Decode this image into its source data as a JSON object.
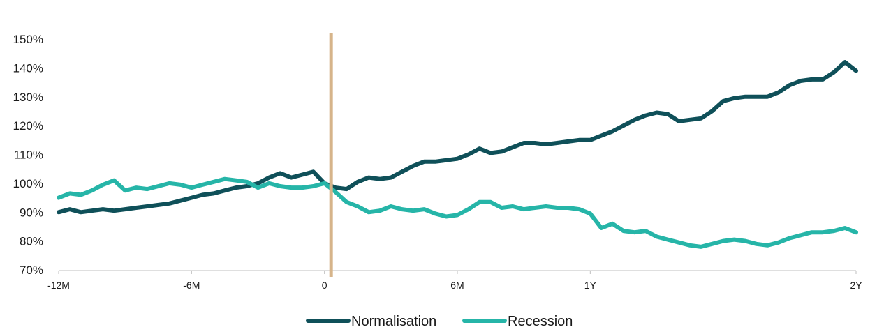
{
  "chart_data": {
    "type": "line",
    "title": "",
    "xlabel": "",
    "ylabel": "",
    "y_ticks": [
      {
        "value": 0.7,
        "label": "70%"
      },
      {
        "value": 0.8,
        "label": "80%"
      },
      {
        "value": 0.9,
        "label": "90%"
      },
      {
        "value": 1.0,
        "label": "100%"
      },
      {
        "value": 1.1,
        "label": "110%"
      },
      {
        "value": 1.2,
        "label": "120%"
      },
      {
        "value": 1.3,
        "label": "130%"
      },
      {
        "value": 1.4,
        "label": "140%"
      },
      {
        "value": 1.5,
        "label": "150%"
      }
    ],
    "x_ticks": [
      {
        "value": -12,
        "label": "-12M"
      },
      {
        "value": -6,
        "label": "-6M"
      },
      {
        "value": 0,
        "label": "0"
      },
      {
        "value": 6,
        "label": "6M"
      },
      {
        "value": 12,
        "label": "1Y"
      },
      {
        "value": 24,
        "label": "2Y"
      }
    ],
    "xlim": [
      -12,
      24
    ],
    "ylim": [
      0.7,
      1.5
    ],
    "x_unit": "months",
    "event_marker": {
      "x": 0.3,
      "color": "#d6b48a"
    },
    "grid": false,
    "legend": "bottom-center",
    "series": [
      {
        "name": "Normalisation",
        "color": "#0f5059",
        "points": [
          [
            -12,
            0.9
          ],
          [
            -11.5,
            0.91
          ],
          [
            -11,
            0.9
          ],
          [
            -10.5,
            0.905
          ],
          [
            -10,
            0.91
          ],
          [
            -9.5,
            0.905
          ],
          [
            -9,
            0.91
          ],
          [
            -8.5,
            0.915
          ],
          [
            -8,
            0.92
          ],
          [
            -7.5,
            0.925
          ],
          [
            -7,
            0.93
          ],
          [
            -6.5,
            0.94
          ],
          [
            -6,
            0.95
          ],
          [
            -5.5,
            0.96
          ],
          [
            -5,
            0.965
          ],
          [
            -4.5,
            0.975
          ],
          [
            -4,
            0.985
          ],
          [
            -3.5,
            0.99
          ],
          [
            -3,
            1.0
          ],
          [
            -2.5,
            1.02
          ],
          [
            -2,
            1.035
          ],
          [
            -1.5,
            1.02
          ],
          [
            -1,
            1.03
          ],
          [
            -0.5,
            1.04
          ],
          [
            0,
            1.0
          ],
          [
            0.5,
            0.985
          ],
          [
            1,
            0.98
          ],
          [
            1.5,
            1.005
          ],
          [
            2,
            1.02
          ],
          [
            2.5,
            1.015
          ],
          [
            3,
            1.02
          ],
          [
            3.5,
            1.04
          ],
          [
            4,
            1.06
          ],
          [
            4.5,
            1.075
          ],
          [
            5,
            1.075
          ],
          [
            5.5,
            1.08
          ],
          [
            6,
            1.085
          ],
          [
            6.5,
            1.1
          ],
          [
            7,
            1.12
          ],
          [
            7.5,
            1.105
          ],
          [
            8,
            1.11
          ],
          [
            8.5,
            1.125
          ],
          [
            9,
            1.14
          ],
          [
            9.5,
            1.14
          ],
          [
            10,
            1.135
          ],
          [
            10.5,
            1.14
          ],
          [
            11,
            1.145
          ],
          [
            11.5,
            1.15
          ],
          [
            12,
            1.15
          ],
          [
            12.5,
            1.165
          ],
          [
            13,
            1.18
          ],
          [
            13.5,
            1.2
          ],
          [
            14,
            1.22
          ],
          [
            14.5,
            1.235
          ],
          [
            15,
            1.245
          ],
          [
            15.5,
            1.24
          ],
          [
            16,
            1.215
          ],
          [
            16.5,
            1.22
          ],
          [
            17,
            1.225
          ],
          [
            17.5,
            1.25
          ],
          [
            18,
            1.285
          ],
          [
            18.5,
            1.295
          ],
          [
            19,
            1.3
          ],
          [
            19.5,
            1.3
          ],
          [
            20,
            1.3
          ],
          [
            20.5,
            1.315
          ],
          [
            21,
            1.34
          ],
          [
            21.5,
            1.355
          ],
          [
            22,
            1.36
          ],
          [
            22.5,
            1.36
          ],
          [
            23,
            1.385
          ],
          [
            23.5,
            1.42
          ],
          [
            24,
            1.39
          ]
        ]
      },
      {
        "name": "Recession",
        "color": "#26b5a8",
        "points": [
          [
            -12,
            0.95
          ],
          [
            -11.5,
            0.965
          ],
          [
            -11,
            0.96
          ],
          [
            -10.5,
            0.975
          ],
          [
            -10,
            0.995
          ],
          [
            -9.5,
            1.01
          ],
          [
            -9,
            0.975
          ],
          [
            -8.5,
            0.985
          ],
          [
            -8,
            0.98
          ],
          [
            -7.5,
            0.99
          ],
          [
            -7,
            1.0
          ],
          [
            -6.5,
            0.995
          ],
          [
            -6,
            0.985
          ],
          [
            -5.5,
            0.995
          ],
          [
            -5,
            1.005
          ],
          [
            -4.5,
            1.015
          ],
          [
            -4,
            1.01
          ],
          [
            -3.5,
            1.005
          ],
          [
            -3,
            0.985
          ],
          [
            -2.5,
            1.0
          ],
          [
            -2,
            0.99
          ],
          [
            -1.5,
            0.985
          ],
          [
            -1,
            0.985
          ],
          [
            -0.5,
            0.99
          ],
          [
            0,
            1.0
          ],
          [
            0.5,
            0.97
          ],
          [
            1,
            0.935
          ],
          [
            1.5,
            0.92
          ],
          [
            2,
            0.9
          ],
          [
            2.5,
            0.905
          ],
          [
            3,
            0.92
          ],
          [
            3.5,
            0.91
          ],
          [
            4,
            0.905
          ],
          [
            4.5,
            0.91
          ],
          [
            5,
            0.895
          ],
          [
            5.5,
            0.885
          ],
          [
            6,
            0.89
          ],
          [
            6.5,
            0.91
          ],
          [
            7,
            0.935
          ],
          [
            7.5,
            0.935
          ],
          [
            8,
            0.915
          ],
          [
            8.5,
            0.92
          ],
          [
            9,
            0.91
          ],
          [
            9.5,
            0.915
          ],
          [
            10,
            0.92
          ],
          [
            10.5,
            0.915
          ],
          [
            11,
            0.915
          ],
          [
            11.5,
            0.91
          ],
          [
            12,
            0.895
          ],
          [
            12.5,
            0.845
          ],
          [
            13,
            0.86
          ],
          [
            13.5,
            0.835
          ],
          [
            14,
            0.83
          ],
          [
            14.5,
            0.835
          ],
          [
            15,
            0.815
          ],
          [
            15.5,
            0.805
          ],
          [
            16,
            0.795
          ],
          [
            16.5,
            0.785
          ],
          [
            17,
            0.78
          ],
          [
            17.5,
            0.79
          ],
          [
            18,
            0.8
          ],
          [
            18.5,
            0.805
          ],
          [
            19,
            0.8
          ],
          [
            19.5,
            0.79
          ],
          [
            20,
            0.785
          ],
          [
            20.5,
            0.795
          ],
          [
            21,
            0.81
          ],
          [
            21.5,
            0.82
          ],
          [
            22,
            0.83
          ],
          [
            22.5,
            0.83
          ],
          [
            23,
            0.835
          ],
          [
            23.5,
            0.845
          ],
          [
            24,
            0.83
          ]
        ]
      }
    ]
  }
}
